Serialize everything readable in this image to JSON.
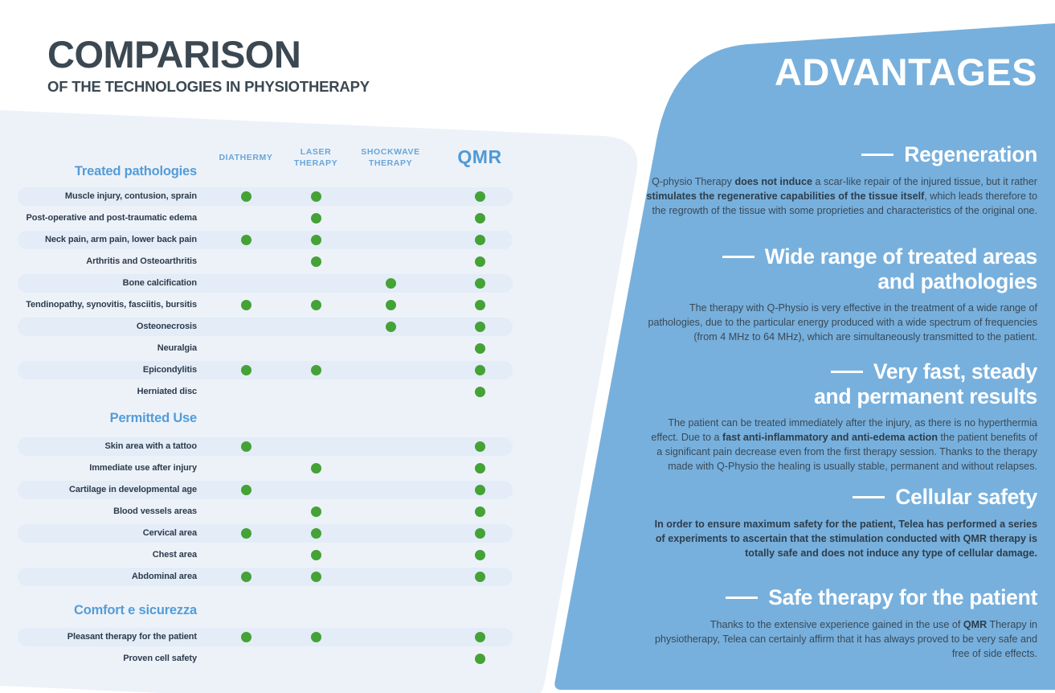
{
  "title_block": {
    "title": "COMPARISON",
    "subtitle": "OF THE TECHNOLOGIES IN PHYSIOTHERAPY"
  },
  "colors": {
    "advantages_panel_blue": "#77b0dd",
    "table_panel_bg": "#edf2f9",
    "row_band_bg": "#e3ecf7",
    "dot_green": "#44a236",
    "column_header_blue": "#6aa5d9",
    "qmr_blue": "#4e9ad6",
    "section_heading_blue": "#549cd7",
    "row_label_dark": "#2c3b4c",
    "title_dark": "#3b4852",
    "advantages_heading_white": "#ffffff",
    "advantages_text_dark": "#3a4956",
    "advantages_text_bold_dark": "#2e3d4a"
  },
  "table": {
    "columns": [
      {
        "lines": [
          "DIATHERMY"
        ]
      },
      {
        "lines": [
          "LASER",
          "THERAPY"
        ]
      },
      {
        "lines": [
          "SHOCKWAVE",
          "THERAPY"
        ]
      },
      {
        "lines": [
          "QMR"
        ],
        "emphasis": true
      }
    ],
    "sections": [
      {
        "heading": "Treated pathologies",
        "rows": [
          {
            "label": "Muscle injury, contusion, sprain",
            "dots": [
              true,
              true,
              false,
              true
            ]
          },
          {
            "label": "Post-operative and post-traumatic edema",
            "dots": [
              false,
              true,
              false,
              true
            ]
          },
          {
            "label": "Neck pain, arm pain, lower back pain",
            "dots": [
              true,
              true,
              false,
              true
            ]
          },
          {
            "label": "Arthritis and Osteoarthritis",
            "dots": [
              false,
              true,
              false,
              true
            ]
          },
          {
            "label": "Bone calcification",
            "dots": [
              false,
              false,
              true,
              true
            ]
          },
          {
            "label": "Tendinopathy, synovitis, fasciitis, bursitis",
            "dots": [
              true,
              true,
              true,
              true
            ]
          },
          {
            "label": "Osteonecrosis",
            "dots": [
              false,
              false,
              true,
              true
            ]
          },
          {
            "label": "Neuralgia",
            "dots": [
              false,
              false,
              false,
              true
            ]
          },
          {
            "label": "Epicondylitis",
            "dots": [
              true,
              true,
              false,
              true
            ]
          },
          {
            "label": "Herniated disc",
            "dots": [
              false,
              false,
              false,
              true
            ]
          }
        ]
      },
      {
        "heading": "Permitted Use",
        "rows": [
          {
            "label": "Skin area with a tattoo",
            "dots": [
              true,
              false,
              false,
              true
            ]
          },
          {
            "label": "Immediate use after injury",
            "dots": [
              false,
              true,
              false,
              true
            ]
          },
          {
            "label": "Cartilage in developmental age",
            "dots": [
              true,
              false,
              false,
              true
            ]
          },
          {
            "label": "Blood vessels areas",
            "dots": [
              false,
              true,
              false,
              true
            ]
          },
          {
            "label": "Cervical area",
            "dots": [
              true,
              true,
              false,
              true
            ]
          },
          {
            "label": "Chest area",
            "dots": [
              false,
              true,
              false,
              true
            ]
          },
          {
            "label": "Abdominal area",
            "dots": [
              true,
              true,
              false,
              true
            ]
          }
        ]
      },
      {
        "heading": "Comfort e sicurezza",
        "rows": [
          {
            "label": "Pleasant therapy for the patient",
            "dots": [
              true,
              true,
              false,
              true
            ]
          },
          {
            "label": "Proven cell safety",
            "dots": [
              false,
              false,
              false,
              true
            ]
          }
        ]
      }
    ]
  },
  "advantages": {
    "title": "ADVANTAGES",
    "sections": [
      {
        "heading_lines": [
          "Regeneration"
        ],
        "paragraph": [
          {
            "t": "Q-physio Therapy "
          },
          {
            "t": "does not induce",
            "b": true
          },
          {
            "t": " a scar-like repair of the injured tissue, but it rather "
          },
          {
            "t": "stimulates the regenerative capabilities of the tissue itself",
            "b": true
          },
          {
            "t": ", which leads therefore to the regrowth of the tissue with some proprieties and characteristics of the original one."
          }
        ]
      },
      {
        "heading_lines": [
          "Wide range of treated areas",
          "and pathologies"
        ],
        "paragraph": [
          {
            "t": "The therapy with Q-Physio is very effective in the treatment of a wide range of pathologies, due to the particular energy produced with a wide spectrum of frequencies (from 4 MHz to 64 MHz), which are simultaneously transmitted to the patient."
          }
        ]
      },
      {
        "heading_lines": [
          "Very fast, steady",
          "and permanent results"
        ],
        "paragraph": [
          {
            "t": "The patient can be treated immediately after the injury, as there is no hyperthermia effect. Due to a "
          },
          {
            "t": "fast anti-inflammatory and anti-edema action",
            "b": true
          },
          {
            "t": " the patient benefits of a significant pain decrease even from the first therapy session. Thanks to the therapy made with Q-Physio the healing is usually stable, permanent and without relapses."
          }
        ]
      },
      {
        "heading_lines": [
          "Cellular safety"
        ],
        "paragraph": [
          {
            "t": "In order to ensure maximum safety for the patient, Telea has performed a series of experiments to ascertain that the stimulation conducted with QMR therapy is totally safe and does not induce any type of cellular damage.",
            "b": true
          }
        ]
      },
      {
        "heading_lines": [
          "Safe therapy for the patient"
        ],
        "paragraph": [
          {
            "t": "Thanks to the extensive experience gained in the use of "
          },
          {
            "t": "QMR",
            "b": true
          },
          {
            "t": " Therapy in physiotherapy, Telea can certainly affirm that it has always proved to be very safe and free of side effects."
          }
        ]
      }
    ]
  }
}
